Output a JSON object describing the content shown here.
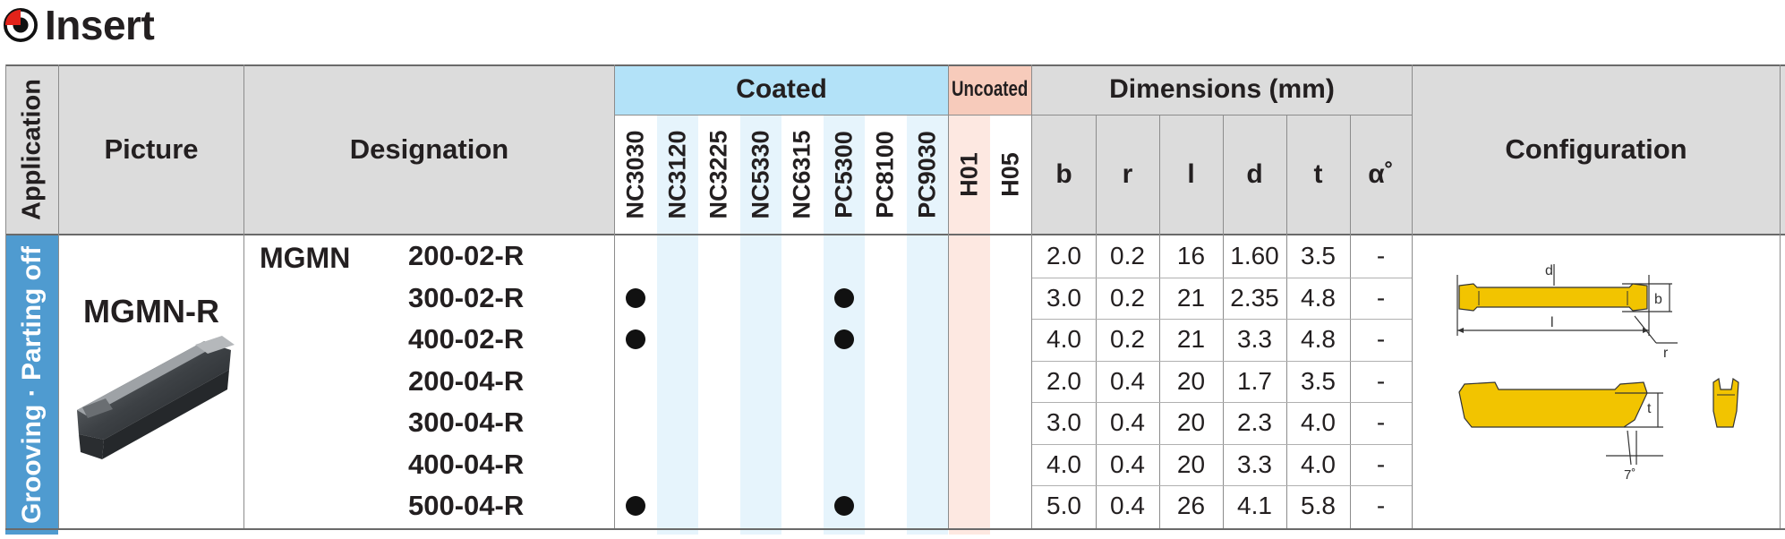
{
  "header": {
    "title": "Insert"
  },
  "table": {
    "application_header": "Application",
    "application_value": "Grooving · Parting off",
    "picture_header": "Picture",
    "picture_label": "MGMN-R",
    "designation_header": "Designation",
    "designation_prefix": "MGMN",
    "coated_header": "Coated",
    "uncoated_header": "Uncoated",
    "dimensions_header": "Dimensions (mm)",
    "configuration_header": "Configuration",
    "coated_grades": [
      "NC3030",
      "NC3120",
      "NC3225",
      "NC5330",
      "NC6315",
      "PC5300",
      "PC8100",
      "PC9030"
    ],
    "uncoated_grades": [
      "H01",
      "H05"
    ],
    "dimension_columns": [
      "b",
      "r",
      "l",
      "d",
      "t",
      "α˚"
    ],
    "rows": [
      {
        "code": "200-02-R",
        "b": "2.0",
        "r": "0.2",
        "l": "16",
        "d": "1.60",
        "t": "3.5",
        "alpha": "-",
        "stock": [
          false,
          false,
          false,
          false,
          false,
          false,
          false,
          false,
          false,
          false
        ]
      },
      {
        "code": "300-02-R",
        "b": "3.0",
        "r": "0.2",
        "l": "21",
        "d": "2.35",
        "t": "4.8",
        "alpha": "-",
        "stock": [
          true,
          false,
          false,
          false,
          false,
          true,
          false,
          false,
          false,
          false
        ]
      },
      {
        "code": "400-02-R",
        "b": "4.0",
        "r": "0.2",
        "l": "21",
        "d": "3.3",
        "t": "4.8",
        "alpha": "-",
        "stock": [
          true,
          false,
          false,
          false,
          false,
          true,
          false,
          false,
          false,
          false
        ]
      },
      {
        "code": "200-04-R",
        "b": "2.0",
        "r": "0.4",
        "l": "20",
        "d": "1.7",
        "t": "3.5",
        "alpha": "-",
        "stock": [
          false,
          false,
          false,
          false,
          false,
          false,
          false,
          false,
          false,
          false
        ]
      },
      {
        "code": "300-04-R",
        "b": "3.0",
        "r": "0.4",
        "l": "20",
        "d": "2.3",
        "t": "4.0",
        "alpha": "-",
        "stock": [
          false,
          false,
          false,
          false,
          false,
          false,
          false,
          false,
          false,
          false
        ]
      },
      {
        "code": "400-04-R",
        "b": "4.0",
        "r": "0.4",
        "l": "20",
        "d": "3.3",
        "t": "4.0",
        "alpha": "-",
        "stock": [
          false,
          false,
          false,
          false,
          false,
          false,
          false,
          false,
          false,
          false
        ]
      },
      {
        "code": "500-04-R",
        "b": "5.0",
        "r": "0.4",
        "l": "26",
        "d": "4.1",
        "t": "5.8",
        "alpha": "-",
        "stock": [
          true,
          false,
          false,
          false,
          false,
          true,
          false,
          false,
          false,
          false
        ]
      }
    ],
    "diagram_labels": {
      "d": "d",
      "b": "b",
      "l": "l",
      "r": "r",
      "t": "t",
      "angle": "7˚"
    }
  },
  "colors": {
    "coated": "#b3e2f8",
    "uncoated": "#f7cbbb",
    "application": "#4f9bd0",
    "insert_yellow": "#f2c400"
  }
}
